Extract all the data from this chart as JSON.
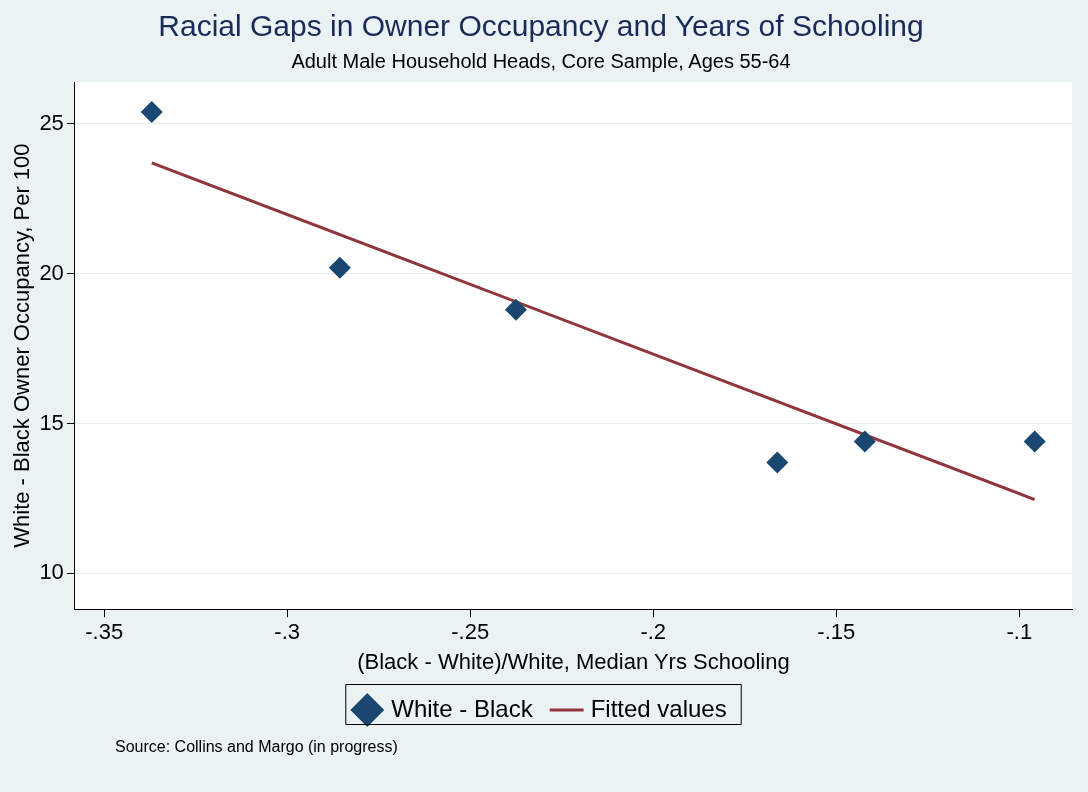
{
  "chart_data": {
    "type": "scatter",
    "title": "Racial Gaps in Owner Occupancy and Years of Schooling",
    "subtitle": "Adult Male Household Heads, Core Sample, Ages 55-64",
    "xlabel": "(Black - White)/White, Median Yrs Schooling",
    "ylabel": "White - Black Owner Occupancy, Per 100",
    "series": [
      {
        "name": "White - Black",
        "type": "scatter",
        "color": "#1a476f",
        "marker": "diamond",
        "x": [
          -0.337,
          -0.2856,
          -0.2375,
          -0.1661,
          -0.1422,
          -0.0958
        ],
        "values": [
          25.4,
          20.2,
          18.8,
          13.7,
          14.4,
          14.4
        ]
      },
      {
        "name": "Fitted values",
        "type": "line",
        "color": "#90353b",
        "marker": "none",
        "line_style": "solid",
        "x": [
          -0.337,
          -0.0958
        ],
        "values": [
          23.7,
          12.46
        ]
      }
    ],
    "xlim": [
      -0.358,
      -0.0856
    ],
    "xticks": [
      {
        "value": -0.35,
        "label": "-.35"
      },
      {
        "value": -0.3,
        "label": "-.3"
      },
      {
        "value": -0.25,
        "label": "-.25"
      },
      {
        "value": -0.2,
        "label": "-.2"
      },
      {
        "value": -0.15,
        "label": "-.15"
      },
      {
        "value": -0.1,
        "label": "-.1"
      }
    ],
    "ylim": [
      8.8,
      26.4
    ],
    "yticks": [
      10,
      15,
      20,
      25
    ],
    "grid": "y",
    "legend": "bottom",
    "annotations": [
      "Source: Collins and Margo (in progress)"
    ]
  }
}
